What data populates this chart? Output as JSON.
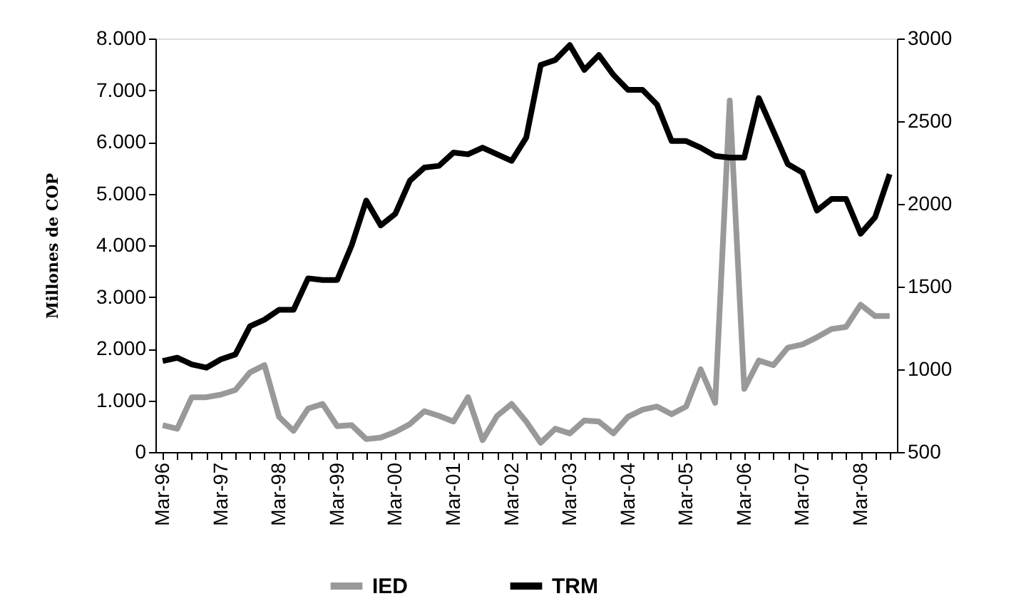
{
  "chart_data": {
    "type": "line",
    "ylabel": "Millones de COP",
    "categories": [
      "Mar-96",
      null,
      null,
      null,
      "Mar-97",
      null,
      null,
      null,
      "Mar-98",
      null,
      null,
      null,
      "Mar-99",
      null,
      null,
      null,
      "Mar-00",
      null,
      null,
      null,
      "Mar-01",
      null,
      null,
      null,
      "Mar-02",
      null,
      null,
      null,
      "Mar-03",
      null,
      null,
      null,
      "Mar-04",
      null,
      null,
      null,
      "Mar-05",
      null,
      null,
      null,
      "Mar-06",
      null,
      null,
      null,
      "Mar-07",
      null,
      null,
      null,
      "Mar-08",
      null,
      null
    ],
    "series": [
      {
        "name": "IED",
        "color": "#999999",
        "values": [
          520,
          450,
          1060,
          1060,
          1110,
          1200,
          1540,
          1680,
          680,
          410,
          840,
          930,
          500,
          520,
          250,
          280,
          390,
          540,
          790,
          700,
          590,
          1060,
          230,
          700,
          930,
          590,
          180,
          450,
          360,
          610,
          590,
          360,
          680,
          820,
          880,
          730,
          880,
          1600,
          950,
          6800,
          1220,
          1770,
          1680,
          2020,
          2080,
          2220,
          2380,
          2420,
          2850,
          2630,
          2630
        ]
      },
      {
        "name": "TRM",
        "color": "#000000",
        "axis": "y2",
        "values": [
          1050,
          1070,
          1030,
          1010,
          1060,
          1090,
          1260,
          1300,
          1360,
          1360,
          1550,
          1540,
          1540,
          1750,
          2020,
          1870,
          1940,
          2140,
          2220,
          2230,
          2310,
          2300,
          2340,
          2300,
          2260,
          2400,
          2840,
          2870,
          2960,
          2810,
          2900,
          2780,
          2690,
          2690,
          2600,
          2380,
          2380,
          2340,
          2290,
          2280,
          2280,
          2640,
          2440,
          2240,
          2190,
          1960,
          2030,
          2030,
          1820,
          1920,
          2180
        ]
      }
    ],
    "ylim": [
      0,
      8000
    ],
    "yticks": [
      {
        "value": 0,
        "label": "0"
      },
      {
        "value": 1000,
        "label": "1.000"
      },
      {
        "value": 2000,
        "label": "2.000"
      },
      {
        "value": 3000,
        "label": "3.000"
      },
      {
        "value": 4000,
        "label": "4.000"
      },
      {
        "value": 5000,
        "label": "5.000"
      },
      {
        "value": 6000,
        "label": "6.000"
      },
      {
        "value": 7000,
        "label": "7.000"
      },
      {
        "value": 8000,
        "label": "8.000"
      }
    ],
    "y2lim": [
      500,
      3000
    ],
    "y2ticks": [
      500,
      1000,
      1500,
      2000,
      2500,
      3000
    ],
    "grid": false,
    "legend": "bottom",
    "marker": "none",
    "line_style": "solid"
  }
}
